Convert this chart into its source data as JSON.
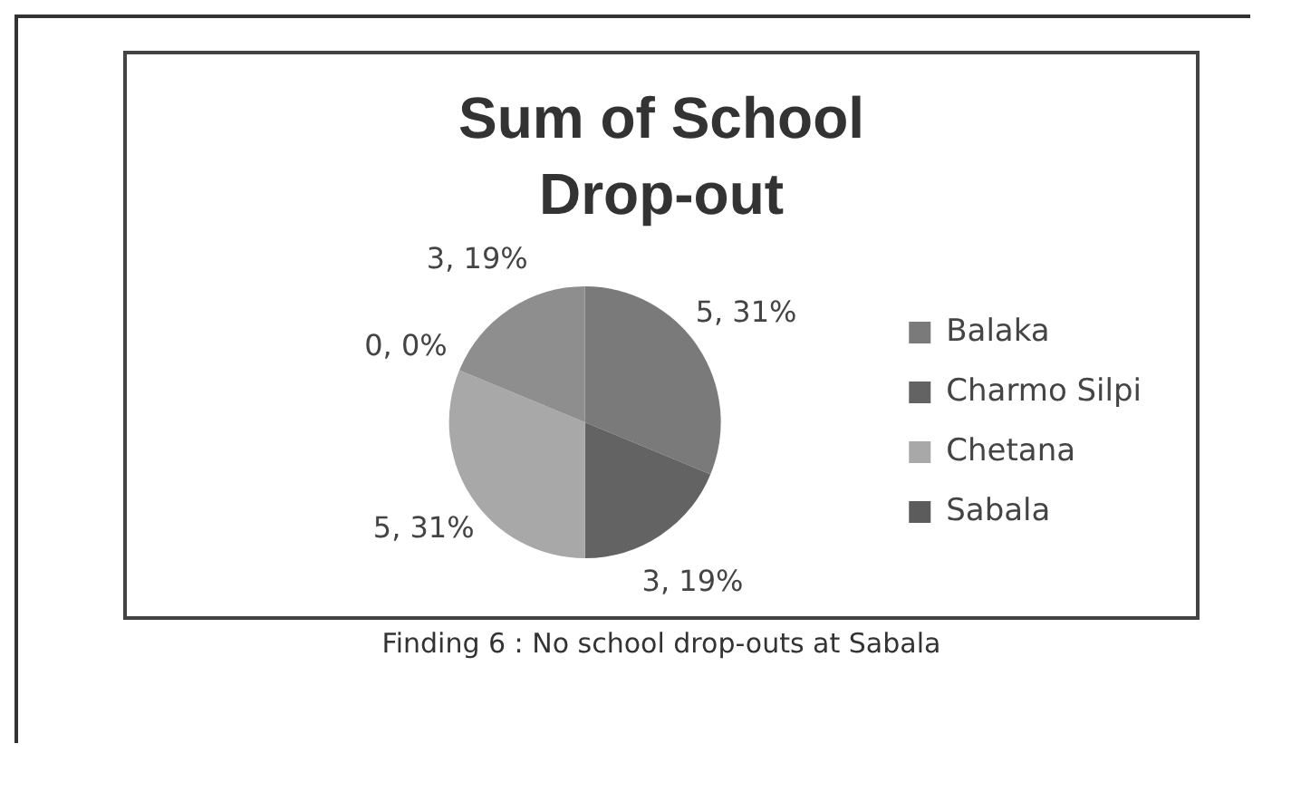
{
  "chart_data": {
    "type": "pie",
    "title": "Sum of School Drop-out",
    "categories": [
      "Balaka",
      "Charmo Silpi",
      "Chetana",
      "Sabala",
      null
    ],
    "values": [
      5,
      3,
      5,
      0,
      3
    ],
    "colors": [
      "#7a7a7a",
      "#636363",
      "#a8a8a8",
      "#5c5c5c",
      "#8e8e8e"
    ],
    "value_labels": [
      "5, 31%",
      "3, 19%",
      "5, 31%",
      "0, 0%",
      "3, 19%"
    ],
    "legend": "right",
    "annotations": [
      "Finding 6 : No school drop-outs at Sabala"
    ]
  }
}
